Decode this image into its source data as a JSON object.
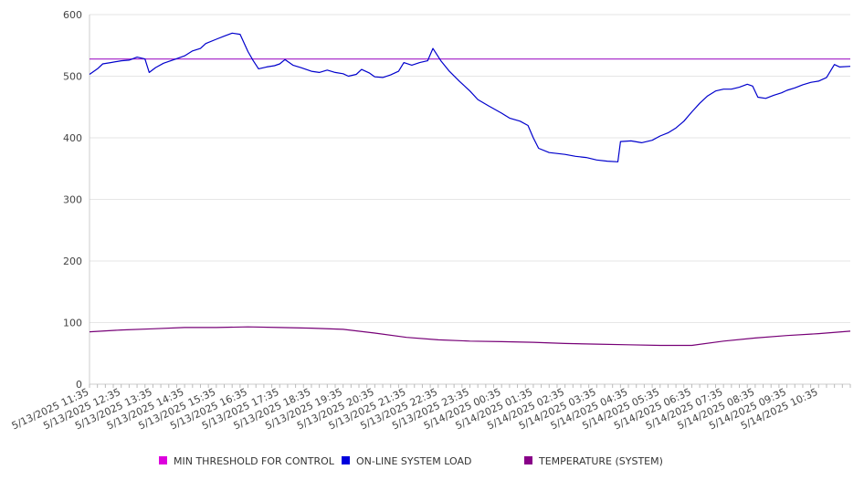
{
  "chart_data": {
    "type": "line",
    "title": "",
    "xlabel": "",
    "ylabel": "",
    "ylim": [
      0,
      600
    ],
    "yticks": [
      0,
      100,
      200,
      300,
      400,
      500,
      600
    ],
    "grid": true,
    "legend_position": "bottom",
    "x_tick_labels": [
      "5/13/2025 11:35",
      "5/13/2025 12:35",
      "5/13/2025 13:35",
      "5/13/2025 14:35",
      "5/13/2025 15:35",
      "5/13/2025 16:35",
      "5/13/2025 17:35",
      "5/13/2025 18:35",
      "5/13/2025 19:35",
      "5/13/2025 20:35",
      "5/13/2025 21:35",
      "5/13/2025 22:35",
      "5/13/2025 23:35",
      "5/14/2025 00:35",
      "5/14/2025 01:35",
      "5/14/2025 02:35",
      "5/14/2025 03:35",
      "5/14/2025 04:35",
      "5/14/2025 05:35",
      "5/14/2025 06:35",
      "5/14/2025 07:35",
      "5/14/2025 08:35",
      "5/14/2025 09:35",
      "5/14/2025 10:35"
    ],
    "x_range": [
      "5/13/2025 11:35",
      "5/14/2025 11:35"
    ],
    "series": [
      {
        "name": "MIN THRESHOLD FOR CONTROL",
        "color": "#dd00dd",
        "line_color": "#aa33cc",
        "points": [
          [
            "5/13/2025 11:35",
            528
          ],
          [
            "5/14/2025 11:35",
            528
          ]
        ]
      },
      {
        "name": "ON-LINE SYSTEM LOAD",
        "color": "#0000dd",
        "line_color": "#0000cc",
        "points": [
          [
            "5/13/2025 11:35",
            503
          ],
          [
            "5/13/2025 11:50",
            512
          ],
          [
            "5/13/2025 12:00",
            520
          ],
          [
            "5/13/2025 12:15",
            522
          ],
          [
            "5/13/2025 12:35",
            525
          ],
          [
            "5/13/2025 12:50",
            526
          ],
          [
            "5/13/2025 13:05",
            531
          ],
          [
            "5/13/2025 13:20",
            528
          ],
          [
            "5/13/2025 13:28",
            506
          ],
          [
            "5/13/2025 13:40",
            514
          ],
          [
            "5/13/2025 13:55",
            521
          ],
          [
            "5/13/2025 14:15",
            527
          ],
          [
            "5/13/2025 14:35",
            533
          ],
          [
            "5/13/2025 14:50",
            541
          ],
          [
            "5/13/2025 15:05",
            545
          ],
          [
            "5/13/2025 15:15",
            553
          ],
          [
            "5/13/2025 15:35",
            560
          ],
          [
            "5/13/2025 15:50",
            565
          ],
          [
            "5/13/2025 16:05",
            570
          ],
          [
            "5/13/2025 16:20",
            568
          ],
          [
            "5/13/2025 16:35",
            540
          ],
          [
            "5/13/2025 16:45",
            525
          ],
          [
            "5/13/2025 16:55",
            512
          ],
          [
            "5/13/2025 17:10",
            515
          ],
          [
            "5/13/2025 17:25",
            517
          ],
          [
            "5/13/2025 17:35",
            520
          ],
          [
            "5/13/2025 17:45",
            527
          ],
          [
            "5/13/2025 18:00",
            518
          ],
          [
            "5/13/2025 18:15",
            514
          ],
          [
            "5/13/2025 18:35",
            508
          ],
          [
            "5/13/2025 18:50",
            506
          ],
          [
            "5/13/2025 19:05",
            510
          ],
          [
            "5/13/2025 19:20",
            506
          ],
          [
            "5/13/2025 19:35",
            504
          ],
          [
            "5/13/2025 19:45",
            500
          ],
          [
            "5/13/2025 20:00",
            503
          ],
          [
            "5/13/2025 20:10",
            511
          ],
          [
            "5/13/2025 20:25",
            505
          ],
          [
            "5/13/2025 20:35",
            499
          ],
          [
            "5/13/2025 20:50",
            498
          ],
          [
            "5/13/2025 21:05",
            502
          ],
          [
            "5/13/2025 21:20",
            508
          ],
          [
            "5/13/2025 21:30",
            522
          ],
          [
            "5/13/2025 21:45",
            518
          ],
          [
            "5/13/2025 22:00",
            522
          ],
          [
            "5/13/2025 22:15",
            525
          ],
          [
            "5/13/2025 22:25",
            545
          ],
          [
            "5/13/2025 22:40",
            525
          ],
          [
            "5/13/2025 22:55",
            509
          ],
          [
            "5/13/2025 23:15",
            492
          ],
          [
            "5/13/2025 23:35",
            476
          ],
          [
            "5/13/2025 23:50",
            462
          ],
          [
            "5/14/2025 00:10",
            452
          ],
          [
            "5/14/2025 00:35",
            440
          ],
          [
            "5/14/2025 00:50",
            432
          ],
          [
            "5/14/2025 01:10",
            427
          ],
          [
            "5/14/2025 01:25",
            420
          ],
          [
            "5/14/2025 01:35",
            400
          ],
          [
            "5/14/2025 01:45",
            383
          ],
          [
            "5/14/2025 02:05",
            376
          ],
          [
            "5/14/2025 02:35",
            373
          ],
          [
            "5/14/2025 02:55",
            370
          ],
          [
            "5/14/2025 03:15",
            368
          ],
          [
            "5/14/2025 03:35",
            364
          ],
          [
            "5/14/2025 03:55",
            362
          ],
          [
            "5/14/2025 04:15",
            361
          ],
          [
            "5/14/2025 04:20",
            394
          ],
          [
            "5/14/2025 04:40",
            395
          ],
          [
            "5/14/2025 05:00",
            392
          ],
          [
            "5/14/2025 05:20",
            396
          ],
          [
            "5/14/2025 05:35",
            403
          ],
          [
            "5/14/2025 05:50",
            408
          ],
          [
            "5/14/2025 06:05",
            416
          ],
          [
            "5/14/2025 06:20",
            427
          ],
          [
            "5/14/2025 06:35",
            442
          ],
          [
            "5/14/2025 06:50",
            456
          ],
          [
            "5/14/2025 07:05",
            468
          ],
          [
            "5/14/2025 07:20",
            476
          ],
          [
            "5/14/2025 07:35",
            479
          ],
          [
            "5/14/2025 07:50",
            479
          ],
          [
            "5/14/2025 08:05",
            482
          ],
          [
            "5/14/2025 08:20",
            487
          ],
          [
            "5/14/2025 08:30",
            484
          ],
          [
            "5/14/2025 08:40",
            466
          ],
          [
            "5/14/2025 08:55",
            464
          ],
          [
            "5/14/2025 09:10",
            469
          ],
          [
            "5/14/2025 09:25",
            473
          ],
          [
            "5/14/2025 09:35",
            477
          ],
          [
            "5/14/2025 09:50",
            481
          ],
          [
            "5/14/2025 10:05",
            486
          ],
          [
            "5/14/2025 10:20",
            490
          ],
          [
            "5/14/2025 10:35",
            492
          ],
          [
            "5/14/2025 10:50",
            498
          ],
          [
            "5/14/2025 11:05",
            519
          ],
          [
            "5/14/2025 11:15",
            515
          ],
          [
            "5/14/2025 11:35",
            516
          ]
        ]
      },
      {
        "name": "TEMPERATURE (SYSTEM)",
        "color": "#880088",
        "line_color": "#770077",
        "points": [
          [
            "5/13/2025 11:35",
            85
          ],
          [
            "5/13/2025 12:35",
            88
          ],
          [
            "5/13/2025 13:35",
            90
          ],
          [
            "5/13/2025 14:35",
            92
          ],
          [
            "5/13/2025 15:35",
            92
          ],
          [
            "5/13/2025 16:35",
            93
          ],
          [
            "5/13/2025 17:35",
            92
          ],
          [
            "5/13/2025 18:35",
            91
          ],
          [
            "5/13/2025 19:35",
            89
          ],
          [
            "5/13/2025 20:35",
            83
          ],
          [
            "5/13/2025 21:35",
            76
          ],
          [
            "5/13/2025 22:35",
            72
          ],
          [
            "5/13/2025 23:35",
            70
          ],
          [
            "5/14/2025 00:35",
            69
          ],
          [
            "5/14/2025 01:35",
            68
          ],
          [
            "5/14/2025 02:35",
            66
          ],
          [
            "5/14/2025 03:35",
            65
          ],
          [
            "5/14/2025 04:35",
            64
          ],
          [
            "5/14/2025 05:35",
            63
          ],
          [
            "5/14/2025 06:35",
            63
          ],
          [
            "5/14/2025 07:35",
            70
          ],
          [
            "5/14/2025 08:35",
            75
          ],
          [
            "5/14/2025 09:35",
            79
          ],
          [
            "5/14/2025 10:35",
            82
          ],
          [
            "5/14/2025 11:35",
            86
          ]
        ]
      }
    ]
  }
}
